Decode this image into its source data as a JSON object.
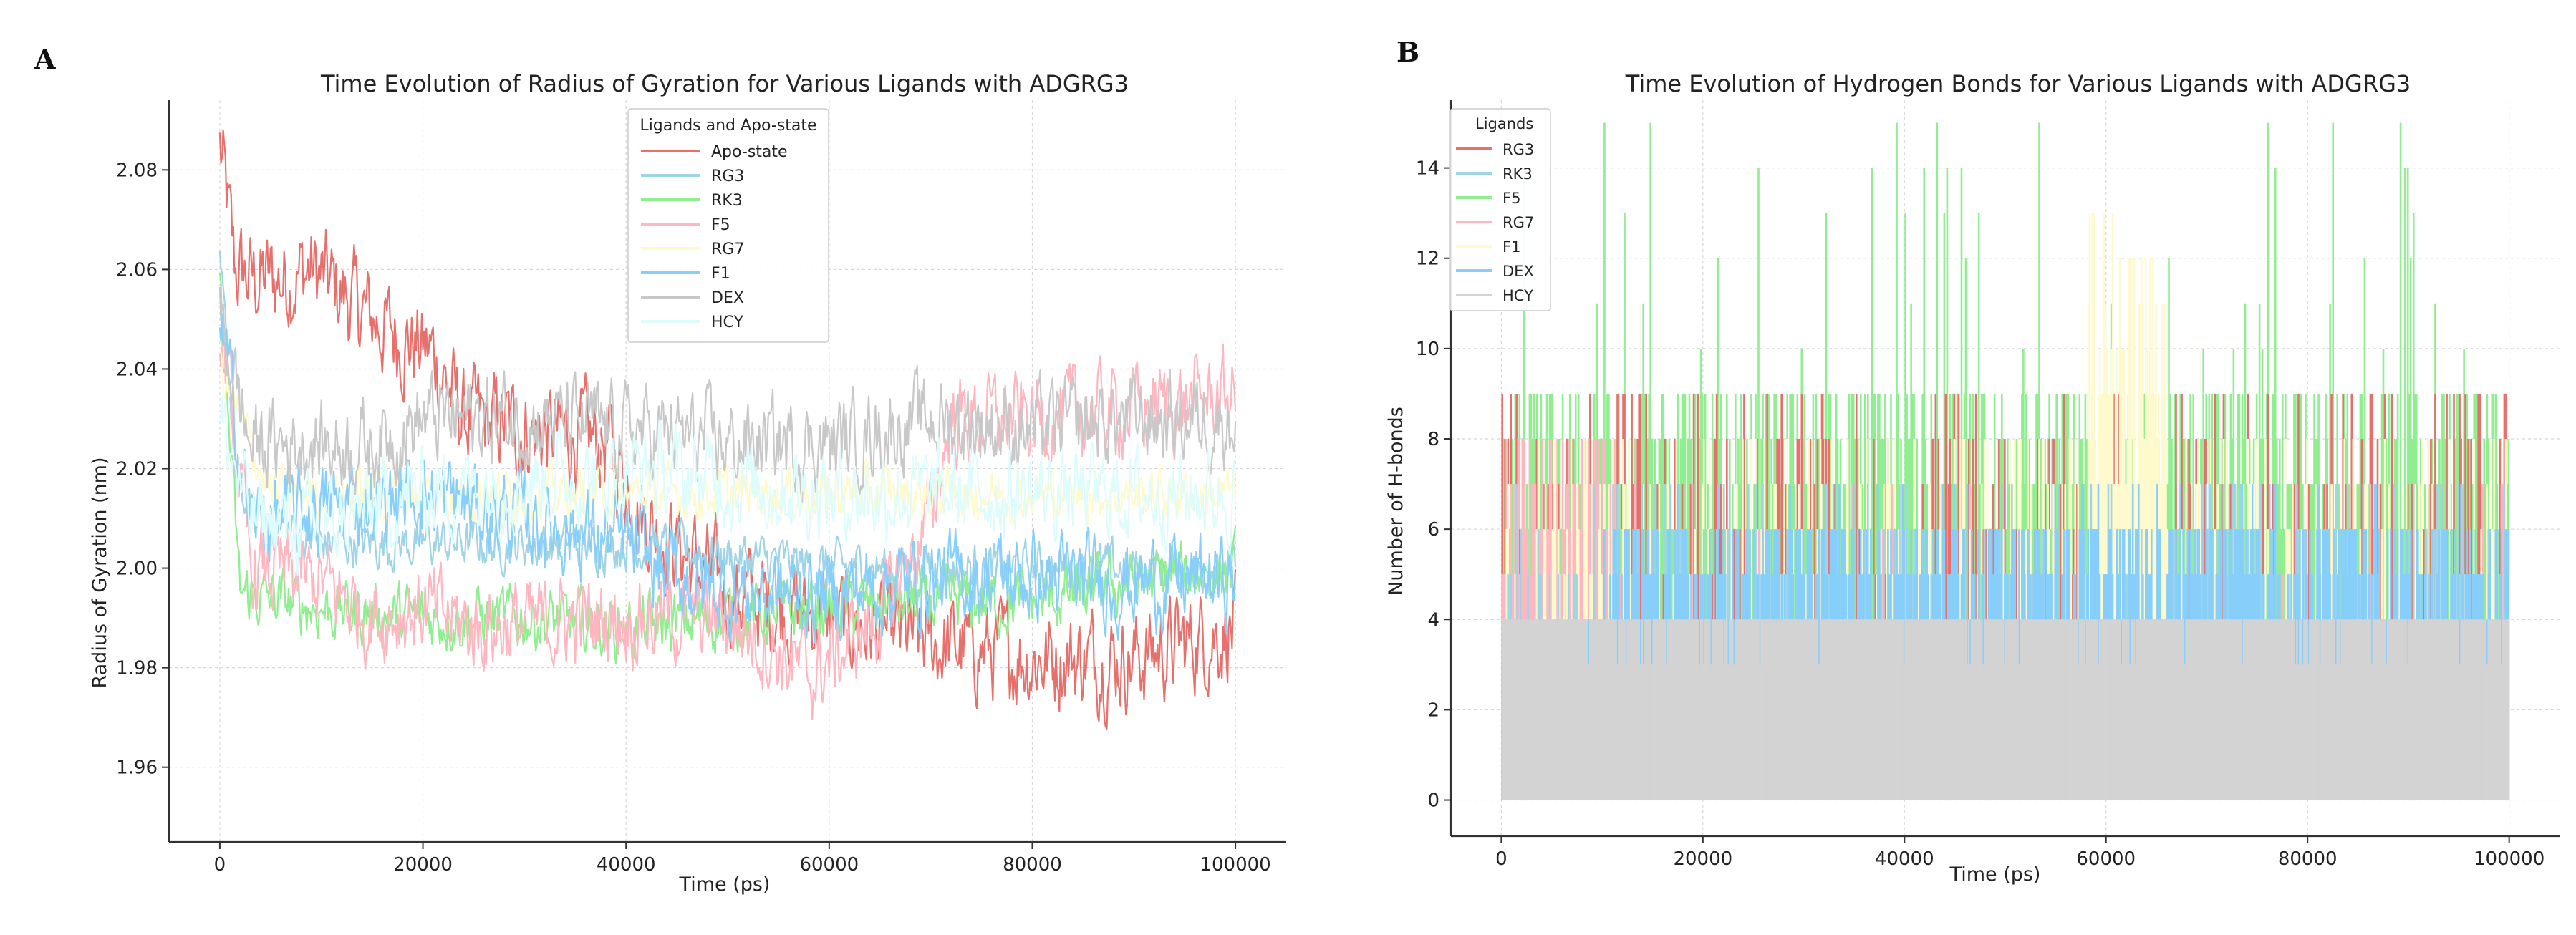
{
  "panels": {
    "a": {
      "letter": "A"
    },
    "b": {
      "letter": "B"
    }
  },
  "chart_data": [
    {
      "type": "line",
      "title": "Time Evolution of Radius of Gyration for Various Ligands with ADGRG3",
      "xlabel": "Time (ps)",
      "ylabel": "Radius of Gyration (nm)",
      "xlim": [
        -5000,
        105000
      ],
      "ylim": [
        1.945,
        2.094
      ],
      "xticks": [
        0,
        20000,
        40000,
        60000,
        80000,
        100000
      ],
      "xtick_labels": [
        "0",
        "20000",
        "40000",
        "60000",
        "80000",
        "100000"
      ],
      "yticks": [
        1.96,
        1.98,
        2.0,
        2.02,
        2.04,
        2.06,
        2.08
      ],
      "ytick_labels": [
        "1.96",
        "1.98",
        "2.00",
        "2.02",
        "2.04",
        "2.06",
        "2.08"
      ],
      "grid": true,
      "legend_title": "Ligands and Apo-state",
      "legend_position": "top-center",
      "series": [
        {
          "name": "Apo-state",
          "color": "#e8706c",
          "samples": [
            [
              0,
              2.085
            ],
            [
              1500,
              2.06
            ],
            [
              3000,
              2.058
            ],
            [
              6000,
              2.058
            ],
            [
              9000,
              2.06
            ],
            [
              12000,
              2.055
            ],
            [
              15000,
              2.05
            ],
            [
              18000,
              2.046
            ],
            [
              21000,
              2.043
            ],
            [
              24000,
              2.03
            ],
            [
              30000,
              2.028
            ],
            [
              38000,
              2.025
            ],
            [
              42000,
              2.01
            ],
            [
              50000,
              1.995
            ],
            [
              60000,
              1.99
            ],
            [
              70000,
              1.985
            ],
            [
              80000,
              1.982
            ],
            [
              90000,
              1.982
            ],
            [
              100000,
              1.988
            ]
          ],
          "noise": 0.008
        },
        {
          "name": "RG3",
          "color": "#9fd4e6",
          "samples": [
            [
              0,
              2.06
            ],
            [
              2000,
              2.012
            ],
            [
              10000,
              2.005
            ],
            [
              20000,
              2.005
            ],
            [
              40000,
              2.005
            ],
            [
              60000,
              2.0
            ],
            [
              80000,
              2.0
            ],
            [
              100000,
              2.0
            ]
          ],
          "noise": 0.004
        },
        {
          "name": "RK3",
          "color": "#90ee90",
          "samples": [
            [
              0,
              2.055
            ],
            [
              2000,
              1.995
            ],
            [
              10000,
              1.992
            ],
            [
              20000,
              1.99
            ],
            [
              30000,
              1.99
            ],
            [
              40000,
              1.988
            ],
            [
              50000,
              1.99
            ],
            [
              60000,
              1.992
            ],
            [
              70000,
              1.993
            ],
            [
              80000,
              1.993
            ],
            [
              90000,
              1.997
            ],
            [
              100000,
              2.0
            ]
          ],
          "noise": 0.005
        },
        {
          "name": "F5",
          "color": "#ffb6c1",
          "samples": [
            [
              0,
              2.05
            ],
            [
              3000,
              2.0
            ],
            [
              10000,
              1.997
            ],
            [
              15000,
              1.99
            ],
            [
              20000,
              1.992
            ],
            [
              25000,
              1.988
            ],
            [
              40000,
              1.99
            ],
            [
              50000,
              1.99
            ],
            [
              55000,
              1.983
            ],
            [
              58000,
              1.978
            ],
            [
              65000,
              1.99
            ],
            [
              70000,
              2.01
            ],
            [
              72000,
              2.03
            ],
            [
              80000,
              2.03
            ],
            [
              90000,
              2.032
            ],
            [
              100000,
              2.035
            ]
          ],
          "noise": 0.007
        },
        {
          "name": "RG7",
          "color": "#fffacd",
          "samples": [
            [
              0,
              2.04
            ],
            [
              5000,
              2.015
            ],
            [
              50000,
              2.015
            ],
            [
              100000,
              2.015
            ]
          ],
          "noise": 0.004
        },
        {
          "name": "F1",
          "color": "#87cefa",
          "samples": [
            [
              0,
              2.05
            ],
            [
              3000,
              2.01
            ],
            [
              20000,
              2.015
            ],
            [
              40000,
              2.005
            ],
            [
              43000,
              2.0
            ],
            [
              50000,
              1.995
            ],
            [
              60000,
              1.995
            ],
            [
              70000,
              1.998
            ],
            [
              80000,
              1.998
            ],
            [
              90000,
              1.997
            ],
            [
              100000,
              1.998
            ]
          ],
          "noise": 0.007
        },
        {
          "name": "DEX",
          "color": "#c8c8c8",
          "samples": [
            [
              0,
              2.05
            ],
            [
              3000,
              2.025
            ],
            [
              15000,
              2.025
            ],
            [
              20000,
              2.03
            ],
            [
              30000,
              2.03
            ],
            [
              40000,
              2.028
            ],
            [
              50000,
              2.025
            ],
            [
              60000,
              2.025
            ],
            [
              70000,
              2.03
            ],
            [
              80000,
              2.028
            ],
            [
              90000,
              2.03
            ],
            [
              100000,
              2.03
            ]
          ],
          "noise": 0.007
        },
        {
          "name": "HCY",
          "color": "#dffcfc",
          "samples": [
            [
              0,
              2.03
            ],
            [
              3000,
              2.01
            ],
            [
              10000,
              2.008
            ],
            [
              20000,
              2.015
            ],
            [
              40000,
              2.02
            ],
            [
              60000,
              2.015
            ],
            [
              80000,
              2.015
            ],
            [
              100000,
              2.015
            ]
          ],
          "noise": 0.007
        }
      ]
    },
    {
      "type": "bar",
      "title": "Time Evolution of Hydrogen Bonds for Various Ligands with ADGRG3",
      "xlabel": "Time (ps)",
      "ylabel": "Number of H-bonds",
      "xlim": [
        -5000,
        105000
      ],
      "ylim": [
        -0.8,
        15.5
      ],
      "xticks": [
        0,
        20000,
        40000,
        60000,
        80000,
        100000
      ],
      "xtick_labels": [
        "0",
        "20000",
        "40000",
        "60000",
        "80000",
        "100000"
      ],
      "yticks": [
        0,
        2,
        4,
        6,
        8,
        10,
        12,
        14
      ],
      "ytick_labels": [
        "0",
        "2",
        "4",
        "6",
        "8",
        "10",
        "12",
        "14"
      ],
      "grid": true,
      "legend_title": "Ligands",
      "legend_position": "top-left",
      "series": [
        {
          "name": "RG3",
          "color": "#e8706c",
          "typical_range": [
            5,
            9
          ],
          "notes": "sparse red spikes up to 10"
        },
        {
          "name": "RK3",
          "color": "#9fd4e6",
          "typical_range": [
            4,
            8
          ]
        },
        {
          "name": "F5",
          "color": "#90ee90",
          "typical_range": [
            6,
            10
          ],
          "max": 15
        },
        {
          "name": "RG7",
          "color": "#ffb6c1",
          "typical_range": [
            5,
            8
          ],
          "notes": "mostly below 12000 ps"
        },
        {
          "name": "F1",
          "color": "#fffacd",
          "typical_range": [
            5,
            9
          ],
          "max": 13,
          "notes": "peak near 60000-65000 ps"
        },
        {
          "name": "DEX",
          "color": "#87cefa",
          "typical_range": [
            3,
            6
          ],
          "max": 7
        },
        {
          "name": "HCY",
          "color": "#d3d3d3",
          "typical_range": [
            0,
            4
          ],
          "max": 5
        }
      ]
    }
  ]
}
